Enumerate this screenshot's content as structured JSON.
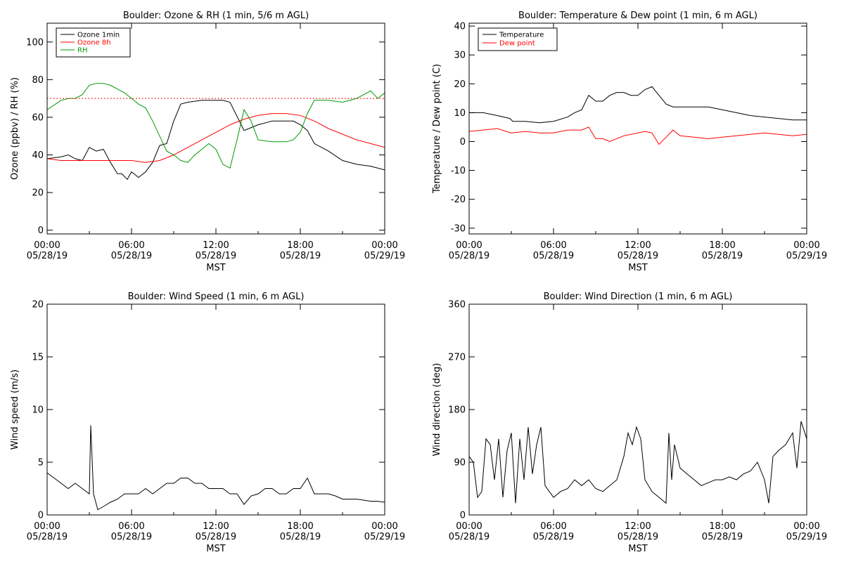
{
  "chart_data": [
    {
      "type": "line",
      "title": "Boulder: Ozone & RH (1 min, 5/6 m AGL)",
      "xlabel": "MST",
      "ylabel": "Ozone (ppbv) / RH (%)",
      "xlim": [
        "05/28/19 00:00",
        "05/29/19 00:00"
      ],
      "ylim": [
        -2,
        110
      ],
      "yticks": [
        0,
        20,
        40,
        60,
        80,
        100
      ],
      "xticks": [
        {
          "time": "00:00",
          "date": "05/28/19"
        },
        {
          "time": "06:00",
          "date": "05/28/19"
        },
        {
          "time": "12:00",
          "date": "05/28/19"
        },
        {
          "time": "18:00",
          "date": "05/28/19"
        },
        {
          "time": "00:00",
          "date": "05/29/19"
        }
      ],
      "legend": "top-left",
      "grid": false,
      "series": [
        {
          "name": "Ozone 1min",
          "color": "#000000",
          "x_hours": [
            0,
            1,
            1.5,
            2,
            2.5,
            3,
            3.5,
            4,
            4.5,
            5,
            5.3,
            5.7,
            6,
            6.5,
            7,
            7.5,
            8,
            8.5,
            9,
            9.5,
            10,
            11,
            12,
            12.5,
            13,
            14,
            15,
            16,
            17,
            17.5,
            18,
            18.5,
            19,
            20,
            21,
            22,
            23,
            24
          ],
          "y": [
            38,
            39,
            40,
            38,
            37,
            44,
            42,
            43,
            36,
            30,
            30,
            27,
            31,
            28,
            31,
            36,
            45,
            46,
            58,
            67,
            68,
            69,
            69,
            69,
            68,
            53,
            56,
            58,
            58,
            58,
            56,
            53,
            46,
            42,
            37,
            35,
            34,
            32
          ]
        },
        {
          "name": "Ozone 8h",
          "color": "#ff0000",
          "x_hours": [
            0,
            1,
            2,
            3,
            4,
            5,
            6,
            7,
            8,
            9,
            10,
            11,
            12,
            13,
            14,
            15,
            16,
            17,
            18,
            19,
            20,
            21,
            22,
            23,
            24
          ],
          "y": [
            38,
            37,
            37,
            37,
            37,
            37,
            37,
            36,
            37,
            40,
            44,
            48,
            52,
            56,
            59,
            61,
            62,
            62,
            61,
            58,
            54,
            51,
            48,
            46,
            44
          ]
        },
        {
          "name": "RH",
          "color": "#009900",
          "x_hours": [
            0,
            1,
            1.5,
            2,
            2.5,
            3,
            3.5,
            4,
            4.5,
            5,
            5.5,
            6,
            6.5,
            7,
            7.5,
            8,
            8.5,
            9,
            9.5,
            10,
            10.5,
            11,
            11.5,
            12,
            12.5,
            13,
            13.5,
            14,
            14.5,
            15,
            16,
            17,
            17.5,
            18,
            18.5,
            19,
            20,
            21,
            22,
            23,
            23.5,
            24
          ],
          "y": [
            64,
            69,
            70,
            70,
            72,
            77,
            78,
            78,
            77,
            75,
            73,
            70,
            67,
            65,
            58,
            50,
            42,
            40,
            37,
            36,
            40,
            43,
            46,
            43,
            35,
            33,
            48,
            64,
            58,
            48,
            47,
            47,
            48,
            52,
            62,
            69,
            69,
            68,
            70,
            74,
            70,
            73
          ]
        },
        {
          "name": "",
          "color": "#ff0000",
          "style": "dotted",
          "x_hours": [
            0,
            24
          ],
          "y": [
            70,
            70
          ]
        }
      ]
    },
    {
      "type": "line",
      "title": "Boulder: Temperature & Dew point (1 min, 6 m AGL)",
      "xlabel": "MST",
      "ylabel": "Temperature / Dew point (C)",
      "xlim": [
        "05/28/19 00:00",
        "05/29/19 00:00"
      ],
      "ylim": [
        -32,
        41
      ],
      "yticks": [
        -30,
        -20,
        -10,
        0,
        10,
        20,
        30,
        40
      ],
      "xticks": [
        {
          "time": "00:00",
          "date": "05/28/19"
        },
        {
          "time": "06:00",
          "date": "05/28/19"
        },
        {
          "time": "12:00",
          "date": "05/28/19"
        },
        {
          "time": "18:00",
          "date": "05/28/19"
        },
        {
          "time": "00:00",
          "date": "05/29/19"
        }
      ],
      "legend": "top-left",
      "grid": false,
      "series": [
        {
          "name": "Temperature",
          "color": "#000000",
          "x_hours": [
            0,
            1,
            2,
            2.9,
            3.1,
            4,
            5,
            6,
            7,
            7.5,
            8,
            8.5,
            9,
            9.5,
            10,
            10.5,
            11,
            11.5,
            12,
            12.5,
            13,
            13.5,
            14,
            14.5,
            15,
            16,
            17,
            18,
            19,
            20,
            21,
            22,
            23,
            24
          ],
          "y": [
            10,
            10,
            9,
            8,
            7,
            7,
            6.5,
            7,
            8.5,
            10,
            11,
            16,
            14,
            14,
            16,
            17,
            17,
            16,
            16,
            18,
            19,
            16,
            13,
            12,
            12,
            12,
            12,
            11,
            10,
            9,
            8.5,
            8,
            7.5,
            7.5
          ]
        },
        {
          "name": "Dew point",
          "color": "#ff0000",
          "x_hours": [
            0,
            1,
            2,
            3,
            4,
            5,
            6,
            7,
            8,
            8.5,
            9,
            9.5,
            10,
            11,
            12,
            12.5,
            13,
            13.5,
            14,
            14.5,
            15,
            16,
            17,
            18,
            19,
            20,
            21,
            22,
            23,
            24
          ],
          "y": [
            3.5,
            4,
            4.5,
            3,
            3.5,
            3,
            3,
            4,
            4,
            5,
            1,
            1,
            0,
            2,
            3,
            3.5,
            3,
            -1,
            1.5,
            4,
            2,
            1.5,
            1,
            1.5,
            2,
            2.5,
            3,
            2.5,
            2,
            2.5
          ]
        }
      ]
    },
    {
      "type": "line",
      "title": "Boulder: Wind Speed (1 min, 6 m AGL)",
      "xlabel": "MST",
      "ylabel": "Wind speed (m/s)",
      "xlim": [
        "05/28/19 00:00",
        "05/29/19 00:00"
      ],
      "ylim": [
        0,
        20
      ],
      "yticks": [
        0,
        5,
        10,
        15,
        20
      ],
      "xticks": [
        {
          "time": "00:00",
          "date": "05/28/19"
        },
        {
          "time": "06:00",
          "date": "05/28/19"
        },
        {
          "time": "12:00",
          "date": "05/28/19"
        },
        {
          "time": "18:00",
          "date": "05/28/19"
        },
        {
          "time": "00:00",
          "date": "05/29/19"
        }
      ],
      "grid": false,
      "series": [
        {
          "color": "#000000",
          "x_hours": [
            0,
            0.5,
            1,
            1.5,
            2,
            2.5,
            3,
            3.1,
            3.3,
            3.6,
            4,
            4.5,
            5,
            5.5,
            6,
            6.5,
            7,
            7.5,
            8,
            8.5,
            9,
            9.5,
            10,
            10.5,
            11,
            11.5,
            12,
            12.5,
            13,
            13.5,
            14,
            14.5,
            15,
            15.5,
            16,
            16.5,
            17,
            17.5,
            18,
            18.5,
            19,
            19.5,
            20,
            20.5,
            21,
            21.5,
            22,
            22.5,
            23,
            23.5,
            24
          ],
          "y": [
            4,
            3.5,
            3,
            2.5,
            3,
            2.5,
            2,
            8.5,
            2,
            0.5,
            0.8,
            1.2,
            1.5,
            2,
            2,
            2,
            2.5,
            2,
            2.5,
            3,
            3,
            3.5,
            3.5,
            3,
            3,
            2.5,
            2.5,
            2.5,
            2,
            2,
            1,
            1.8,
            2,
            2.5,
            2.5,
            2,
            2,
            2.5,
            2.5,
            3.5,
            2,
            2,
            2,
            1.8,
            1.5,
            1.5,
            1.5,
            1.4,
            1.3,
            1.3,
            1.2
          ]
        }
      ]
    },
    {
      "type": "line",
      "title": "Boulder: Wind Direction (1 min, 6 m AGL)",
      "xlabel": "MST",
      "ylabel": "Wind direction (deg)",
      "xlim": [
        "05/28/19 00:00",
        "05/29/19 00:00"
      ],
      "ylim": [
        0,
        360
      ],
      "yticks": [
        0,
        90,
        180,
        270,
        360
      ],
      "xticks": [
        {
          "time": "00:00",
          "date": "05/28/19"
        },
        {
          "time": "06:00",
          "date": "05/28/19"
        },
        {
          "time": "12:00",
          "date": "05/28/19"
        },
        {
          "time": "18:00",
          "date": "05/28/19"
        },
        {
          "time": "00:00",
          "date": "05/29/19"
        }
      ],
      "grid": false,
      "series": [
        {
          "color": "#000000",
          "x_hours": [
            0,
            0.3,
            0.6,
            0.9,
            1.2,
            1.5,
            1.8,
            2.1,
            2.4,
            2.7,
            3,
            3.3,
            3.6,
            3.9,
            4.2,
            4.5,
            4.8,
            5.1,
            5.4,
            6,
            6.5,
            7,
            7.5,
            8,
            8.5,
            9,
            9.5,
            10,
            10.5,
            11,
            11.3,
            11.6,
            11.9,
            12.2,
            12.5,
            13,
            13.5,
            14,
            14.2,
            14.4,
            14.6,
            15,
            15.5,
            16,
            16.5,
            17,
            17.5,
            18,
            18.5,
            19,
            19.5,
            20,
            20.5,
            21,
            21.3,
            21.6,
            22,
            22.5,
            23,
            23.3,
            23.6,
            24
          ],
          "y": [
            100,
            90,
            30,
            40,
            130,
            120,
            60,
            130,
            30,
            110,
            140,
            20,
            130,
            60,
            150,
            70,
            120,
            150,
            50,
            30,
            40,
            45,
            60,
            50,
            60,
            45,
            40,
            50,
            60,
            100,
            140,
            120,
            150,
            130,
            60,
            40,
            30,
            20,
            140,
            60,
            120,
            80,
            70,
            60,
            50,
            55,
            60,
            60,
            65,
            60,
            70,
            75,
            90,
            60,
            20,
            100,
            110,
            120,
            140,
            80,
            160,
            130
          ]
        }
      ]
    }
  ]
}
